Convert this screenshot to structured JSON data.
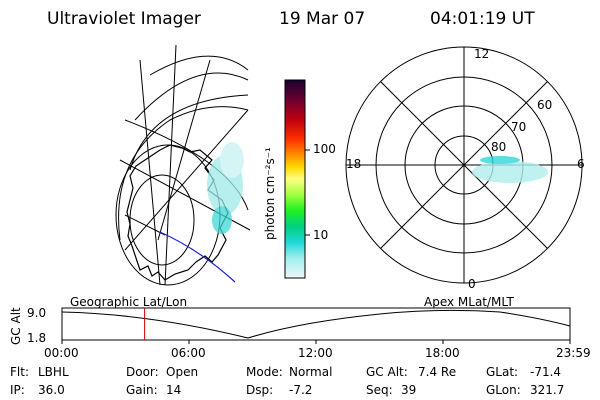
{
  "header": {
    "title": "Ultraviolet Imager",
    "date": "19 Mar 07",
    "time": "04:01:19 UT"
  },
  "colorbar": {
    "unit_label": "photon cm⁻²s⁻¹",
    "ticks": [
      "100",
      "10"
    ],
    "colors": [
      "#1a0030",
      "#2a003a",
      "#5a0030",
      "#a00018",
      "#e00000",
      "#ff4000",
      "#ff8800",
      "#ffc000",
      "#ffff60",
      "#c0ff40",
      "#60ff40",
      "#00e060",
      "#00c8c0",
      "#40e8e8",
      "#a0f0f0",
      "#d8f4f4"
    ]
  },
  "polar_plot": {
    "clock_labels": {
      "top": "12",
      "right": "6",
      "bottom": "0",
      "left": "18"
    },
    "lat_labels": [
      "60",
      "70",
      "80"
    ]
  },
  "timeline": {
    "ylabel": "GC Alt",
    "y_ticks": [
      "9.0",
      "1.8"
    ],
    "left_caption": "Geographic Lat/Lon",
    "right_caption": "Apex MLat/MLT",
    "x_ticks": [
      "00:00",
      "06:00",
      "12:00",
      "18:00",
      "23:59"
    ],
    "current_marker_hours": 3.9
  },
  "status": {
    "flt": {
      "label": "Flt:",
      "value": "LBHL"
    },
    "door": {
      "label": "Door:",
      "value": "Open"
    },
    "mode": {
      "label": "Mode:",
      "value": "Normal"
    },
    "gc_alt": {
      "label": "GC Alt:",
      "value": "7.4 Re"
    },
    "glat": {
      "label": "GLat:",
      "value": "-71.4"
    },
    "ip": {
      "label": "IP:",
      "value": "36.0"
    },
    "gain": {
      "label": "Gain:",
      "value": "14"
    },
    "dsp": {
      "label": "Dsp:",
      "value": "-7.2"
    },
    "seq": {
      "label": "Seq:",
      "value": "39"
    },
    "glon": {
      "label": "GLon:",
      "value": "321.7"
    }
  }
}
